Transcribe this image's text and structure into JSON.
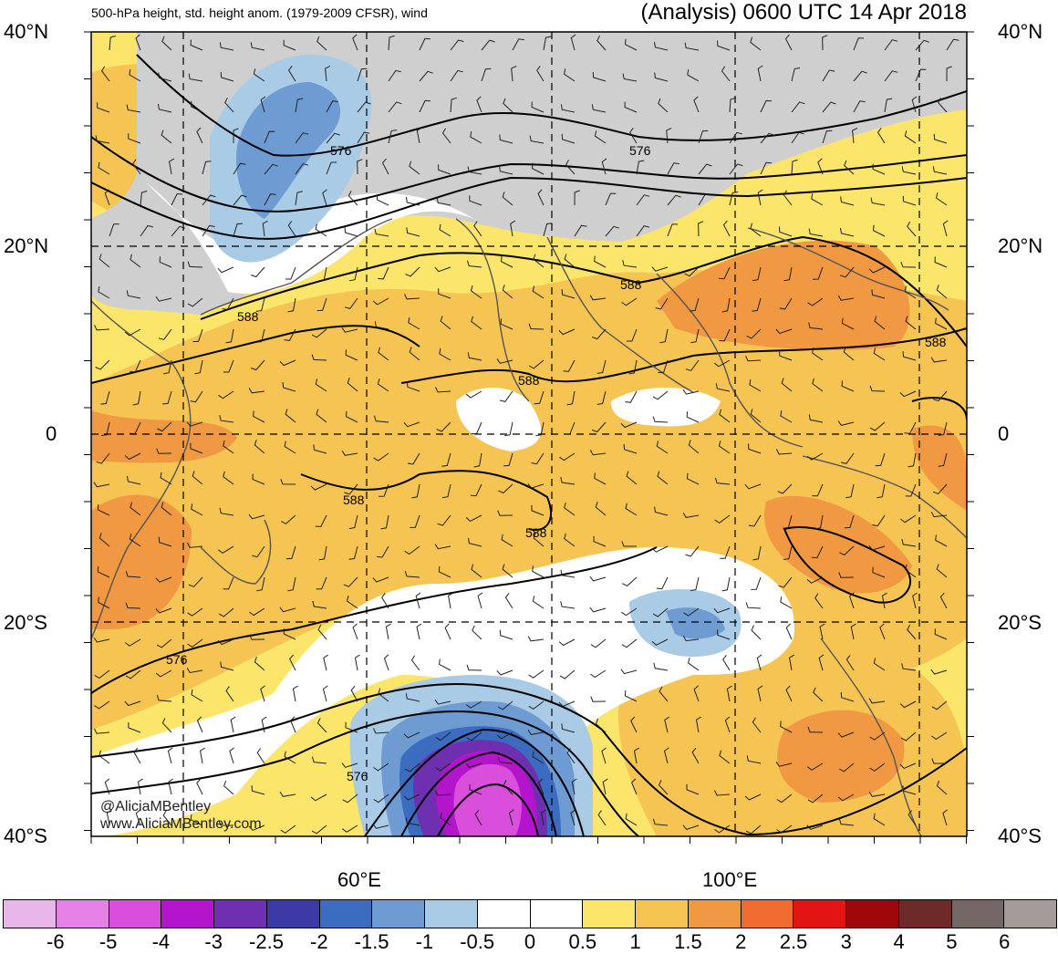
{
  "title": {
    "left": "500-hPa height, std. height anom. (1979-2009 CFSR), wind",
    "right": "(Analysis) 0600 UTC 14 Apr 2018"
  },
  "axes": {
    "lat_left": [
      "40°N",
      "20°N",
      "0",
      "20°S",
      "40°S"
    ],
    "lat_right": [
      "40°N",
      "20°N",
      "0",
      "20°S",
      "40°S"
    ],
    "lon": [
      "60°E",
      "100°E"
    ]
  },
  "contour_labels": [
    "576",
    "576",
    "588",
    "588",
    "588",
    "588",
    "588",
    "588",
    "576"
  ],
  "credit": {
    "handle": "@AliciaMBentley",
    "url": "www.AliciaMBentley.com"
  },
  "colorbar": {
    "colors": [
      "#e9b6e9",
      "#e67fe6",
      "#d94fdc",
      "#b414cc",
      "#6e2fb0",
      "#3b3aa7",
      "#3b6cbf",
      "#6f9bd3",
      "#a9cbe6",
      "#ffffff",
      "#ffffff",
      "#fbe56a",
      "#f5c453",
      "#f19842",
      "#f06b2f",
      "#e21414",
      "#a0070b",
      "#6d2a26",
      "#766767",
      "#a59c9a"
    ],
    "labels": [
      "-6",
      "-5",
      "-4",
      "-3",
      "-2.5",
      "-2",
      "-1.5",
      "-1",
      "-0.5",
      "0",
      "0.5",
      "1",
      "1.5",
      "2",
      "2.5",
      "3",
      "4",
      "5",
      "6"
    ]
  }
}
